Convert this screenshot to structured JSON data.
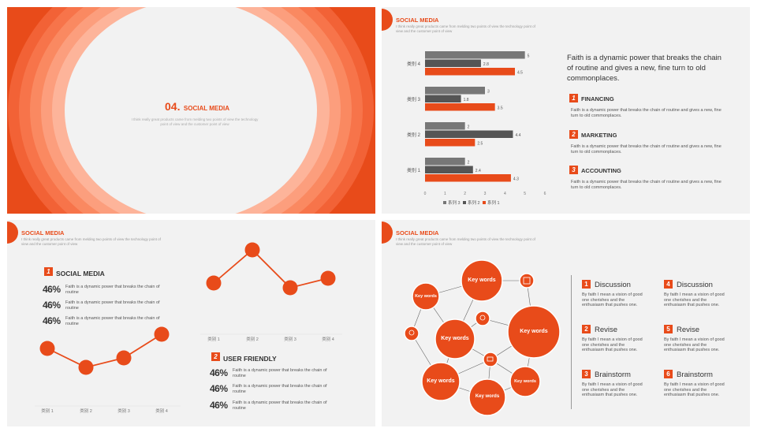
{
  "slide1": {
    "number": "04.",
    "title": "SOCIAL MEDIA",
    "subtitle": "I think really great products came from melding two points of view the technology point of view and the customer point of view"
  },
  "slide2": {
    "title": "SOCIAL MEDIA",
    "subtitle": "I think really great products came from melding two points of view the technology point of view and the customer point of view",
    "headline": "Faith is a dynamic power that breaks the chain of routine and gives a new, fine turn to old commonplaces.",
    "items": [
      {
        "num": "1",
        "title": "FINANCING",
        "text": "Faith is a dynamic power that breaks the chain of routine and gives a new, fine turn to old commonplaces."
      },
      {
        "num": "2",
        "title": "MARKETING",
        "text": "Faith is a dynamic power that breaks the chain of routine and gives a new, fine turn to old commonplaces."
      },
      {
        "num": "3",
        "title": "ACCOUNTING",
        "text": "Faith is a dynamic power that breaks the chain of routine and gives a new, fine turn to old commonplaces."
      }
    ]
  },
  "slide3": {
    "title": "SOCIAL MEDIA",
    "subtitle": "I think really great products came from melding two points of view the technology point of view and the customer point of view",
    "section1": {
      "num": "1",
      "title": "SOCIAL MEDIA",
      "rows": [
        {
          "pct": "46%",
          "text": "Faith is a dynamic power that breaks the chain of routine"
        },
        {
          "pct": "46%",
          "text": "Faith is a dynamic power that breaks the chain of routine"
        },
        {
          "pct": "46%",
          "text": "Faith is a dynamic power that breaks the chain of routine"
        }
      ]
    },
    "section2": {
      "num": "2",
      "title": "USER FRIENDLY",
      "rows": [
        {
          "pct": "46%",
          "text": "Faith is a dynamic power that breaks the chain of routine"
        },
        {
          "pct": "46%",
          "text": "Faith is a dynamic power that breaks the chain of routine"
        },
        {
          "pct": "46%",
          "text": "Faith is a dynamic power that breaks the chain of routine"
        }
      ]
    }
  },
  "slide4": {
    "title": "SOCIAL MEDIA",
    "subtitle": "I think really great products came from melding two points of view the technology point of view and the customer point of view",
    "bubbles": [
      "Key words",
      "Key words",
      "Key words",
      "Key words",
      "Key words",
      "Key words",
      "Key words"
    ],
    "items": [
      {
        "num": "1",
        "title": "Discussion",
        "text": "By faith I mean a vision of good one cherishes and the enthusiasm that pushes one."
      },
      {
        "num": "4",
        "title": "Discussion",
        "text": "By faith I mean a vision of good one cherishes and the enthusiasm that pushes one."
      },
      {
        "num": "2",
        "title": "Revise",
        "text": "By faith I mean a vision of good one cherishes and the enthusiasm that pushes one."
      },
      {
        "num": "5",
        "title": "Revise",
        "text": "By faith I mean a vision of good one cherishes and the enthusiasm that pushes one."
      },
      {
        "num": "3",
        "title": "Brainstorm",
        "text": "By faith I mean a vision of good one cherishes and the enthusiasm that pushes one."
      },
      {
        "num": "6",
        "title": "Brainstorm",
        "text": "By faith I mean a vision of good one cherishes and the enthusiasm that pushes one."
      }
    ]
  },
  "colors": {
    "accent": "#e84b1a",
    "dark": "#555555",
    "gray": "#777777",
    "background": "#f2f2f2"
  },
  "chart_data": [
    {
      "type": "bar",
      "categories": [
        "类别 4",
        "类别 3",
        "类别 2",
        "类别 1"
      ],
      "series": [
        {
          "name": "系列 3",
          "values": [
            5,
            3,
            2,
            2
          ]
        },
        {
          "name": "系列 2",
          "values": [
            2.8,
            1.8,
            4.4,
            2.4
          ]
        },
        {
          "name": "系列 1",
          "values": [
            4.5,
            3.5,
            2.5,
            4.3
          ]
        }
      ],
      "xticks": [
        "0",
        "1",
        "2",
        "3",
        "4",
        "5",
        "6"
      ],
      "xlim": [
        0,
        6
      ],
      "orientation": "horizontal",
      "legend": "bottom",
      "colors": [
        "#777777",
        "#555555",
        "#e84b1a"
      ]
    },
    {
      "type": "line",
      "categories": [
        "类别 1",
        "类别 2",
        "类别 3",
        "类别 4"
      ],
      "values": [
        2.4,
        1.6,
        2.0,
        3.0
      ],
      "ylim": [
        0,
        4
      ]
    },
    {
      "type": "line",
      "categories": [
        "类别 1",
        "类别 2",
        "类别 3",
        "类别 4"
      ],
      "values": [
        2.0,
        3.4,
        1.8,
        2.2
      ],
      "ylim": [
        0,
        4
      ]
    }
  ]
}
